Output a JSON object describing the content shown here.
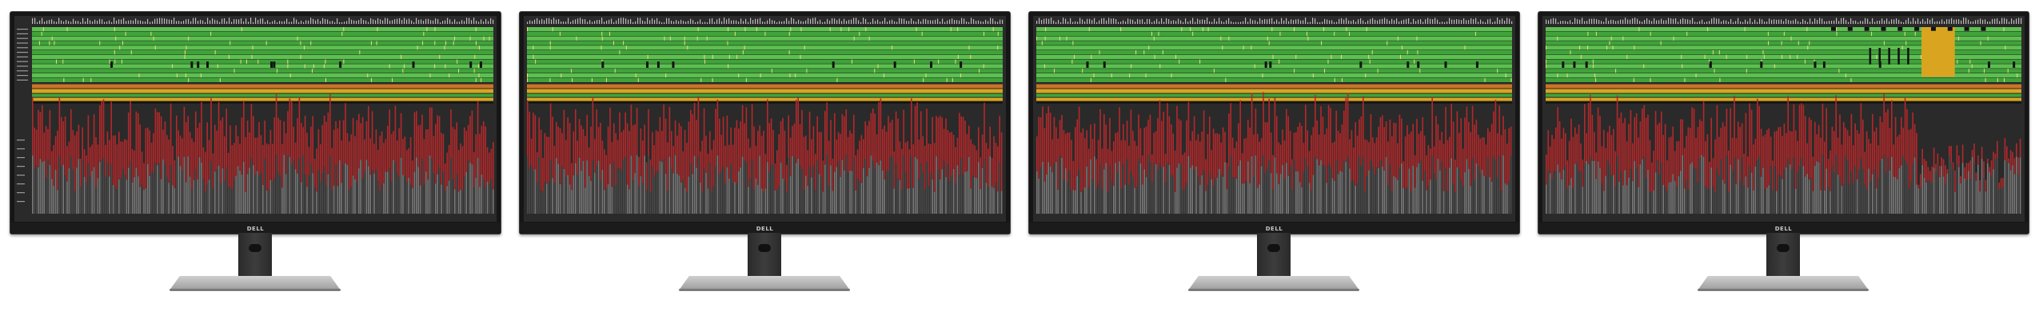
{
  "monitors": [
    {
      "brand": "DELL",
      "variant": 0
    },
    {
      "brand": "DELL",
      "variant": 1
    },
    {
      "brand": "DELL",
      "variant": 2
    },
    {
      "brand": "DELL",
      "variant": 3
    }
  ],
  "colors": {
    "screen_bg": "#2a2a2a",
    "green": "#3fa33a",
    "green_light": "#5cc04f",
    "yellow": "#d9a521",
    "orange": "#c8742a",
    "red": "#b5282a",
    "gray_bar": "#7a7a7a",
    "dark_bar": "#4a4a4a",
    "black": "#111111"
  }
}
